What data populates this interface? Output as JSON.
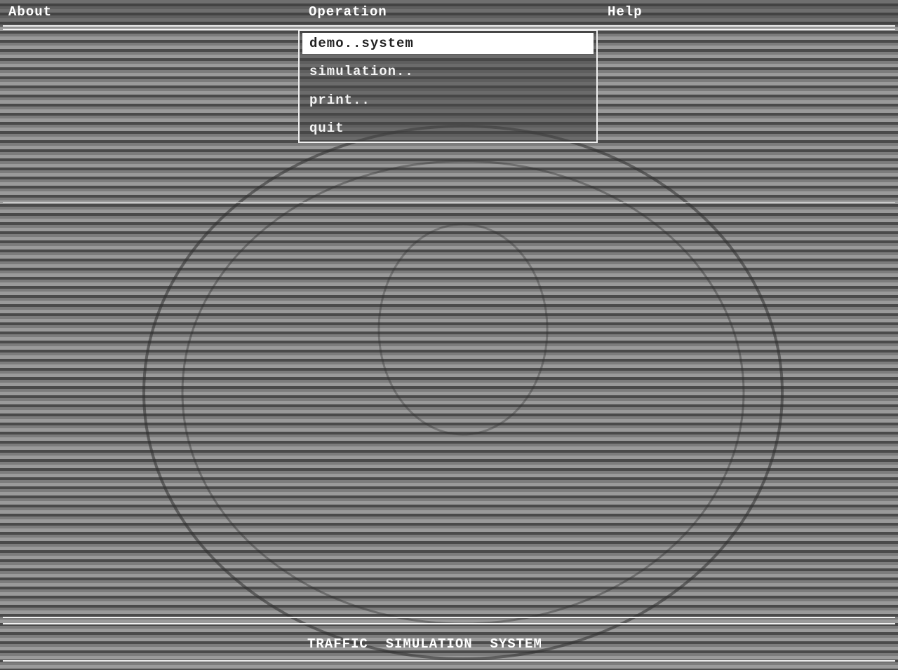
{
  "menu_bar": {
    "items": [
      "About",
      "Operation",
      "Help"
    ]
  },
  "dropdown": {
    "items": [
      "demo..system",
      "simulation..",
      "print..",
      "quit"
    ]
  },
  "footer": {
    "title": "TRAFFIC  SIMULATION  SYSTEM"
  }
}
